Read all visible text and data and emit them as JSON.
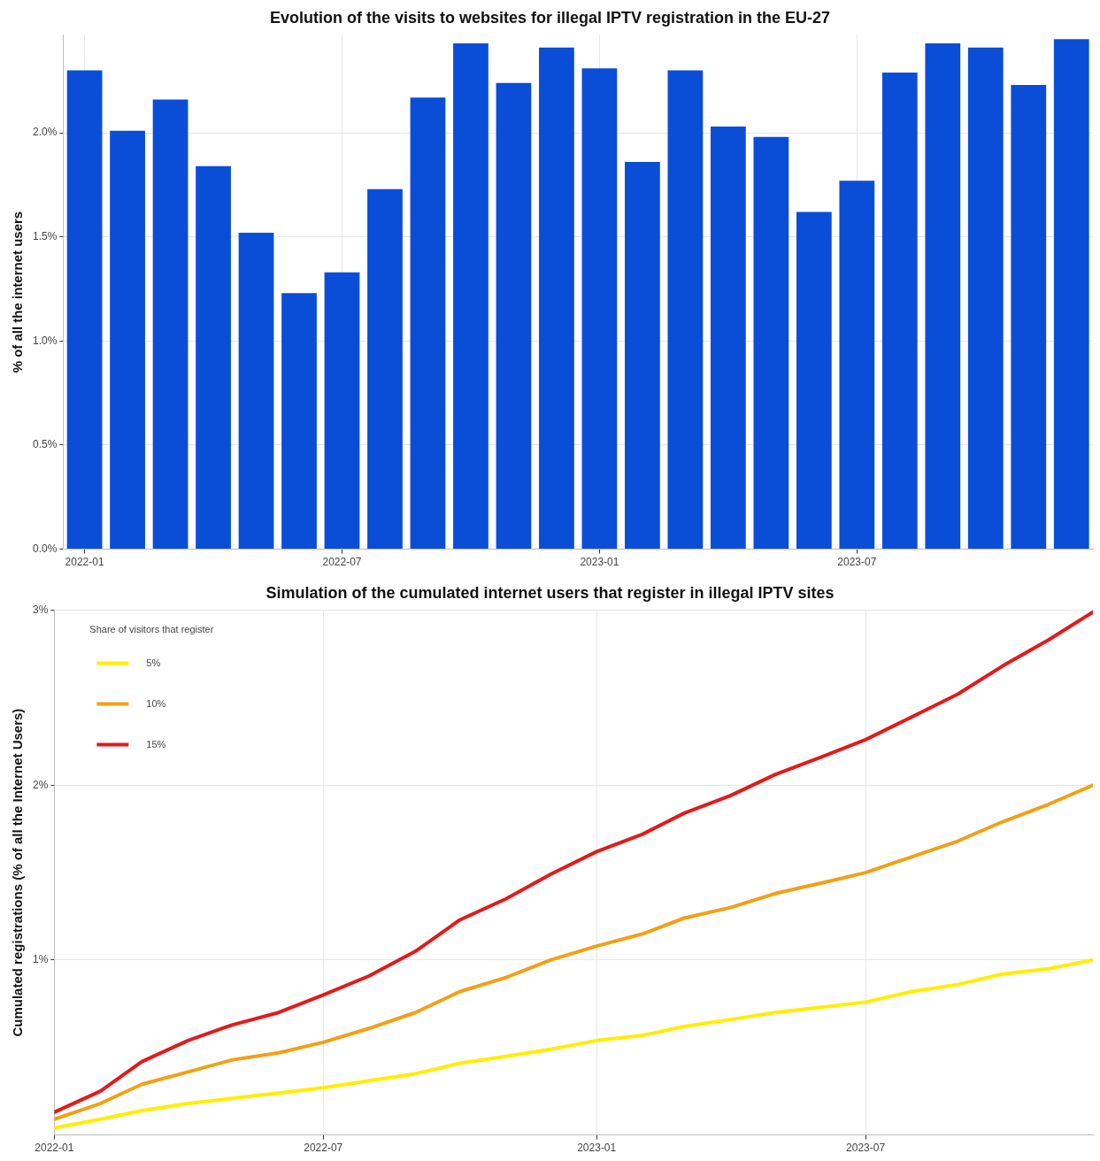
{
  "chart_data": [
    {
      "type": "bar",
      "title": "Evolution of the visits to websites for illegal IPTV registration in the EU-27",
      "ylabel": "% of all the internet users",
      "categories": [
        "2022-01",
        null,
        null,
        null,
        null,
        null,
        "2022-07",
        null,
        null,
        null,
        null,
        null,
        "2023-01",
        null,
        null,
        null,
        null,
        null,
        "2023-07",
        null,
        null,
        null,
        null,
        null
      ],
      "values": [
        2.3,
        2.01,
        2.16,
        1.84,
        1.52,
        1.23,
        1.33,
        1.73,
        2.17,
        2.43,
        2.24,
        2.41,
        2.31,
        1.86,
        2.3,
        2.03,
        1.98,
        1.62,
        1.77,
        2.29,
        2.43,
        2.41,
        2.23,
        2.45
      ],
      "color": "#0a4ed8",
      "ylim": [
        0,
        2.47
      ],
      "yticks": [
        {
          "value": 0,
          "label": "0.0%"
        },
        {
          "value": 0.5,
          "label": "0.5%"
        },
        {
          "value": 1,
          "label": "1.0%"
        },
        {
          "value": 1.5,
          "label": "1.5%"
        },
        {
          "value": 2,
          "label": "2.0%"
        }
      ],
      "grid": true,
      "legend": false
    },
    {
      "type": "line",
      "title": "Simulation of the cumulated internet users that register in illegal IPTV sites",
      "ylabel": "Cumulated registrations (% of all the Internet Users)",
      "legend_title": "Share of visitors that register",
      "x": [
        "2022-01",
        "2022-02",
        "2022-03",
        "2022-04",
        "2022-05",
        "2022-06",
        "2022-07",
        "2022-08",
        "2022-09",
        "2022-10",
        "2022-11",
        "2022-12",
        "2023-01",
        "2023-02",
        "2023-03",
        "2023-04",
        "2023-05",
        "2023-06",
        "2023-07",
        "2023-08",
        "2023-09",
        "2023-10",
        "2023-11",
        "2023-12"
      ],
      "series": [
        {
          "name": "5%",
          "color": "#ffee00",
          "values": [
            0.04,
            0.09,
            0.14,
            0.18,
            0.21,
            0.24,
            0.27,
            0.31,
            0.35,
            0.41,
            0.45,
            0.49,
            0.54,
            0.57,
            0.62,
            0.66,
            0.7,
            0.73,
            0.76,
            0.82,
            0.86,
            0.92,
            0.95,
            1.0
          ]
        },
        {
          "name": "10%",
          "color": "#f2a014",
          "values": [
            0.09,
            0.18,
            0.29,
            0.36,
            0.43,
            0.47,
            0.53,
            0.61,
            0.7,
            0.82,
            0.9,
            1.0,
            1.08,
            1.15,
            1.24,
            1.3,
            1.38,
            1.44,
            1.5,
            1.59,
            1.68,
            1.79,
            1.89,
            2.0
          ]
        },
        {
          "name": "15%",
          "color": "#e31a1c",
          "values": [
            0.13,
            0.25,
            0.42,
            0.54,
            0.63,
            0.7,
            0.8,
            0.91,
            1.05,
            1.23,
            1.35,
            1.49,
            1.62,
            1.72,
            1.84,
            1.94,
            2.06,
            2.16,
            2.26,
            2.39,
            2.52,
            2.68,
            2.83,
            2.99
          ]
        }
      ],
      "xlim": [
        "2022-01",
        "2023-12"
      ],
      "xticks": [
        "2022-01",
        "2022-07",
        "2023-01",
        "2023-07"
      ],
      "ylim": [
        0,
        3
      ],
      "yticks": [
        {
          "value": 1,
          "label": "1%"
        },
        {
          "value": 2,
          "label": "2%"
        },
        {
          "value": 3,
          "label": "3%"
        }
      ],
      "grid": true,
      "legend": "top left",
      "marker": "none",
      "line_style": "solid"
    }
  ]
}
